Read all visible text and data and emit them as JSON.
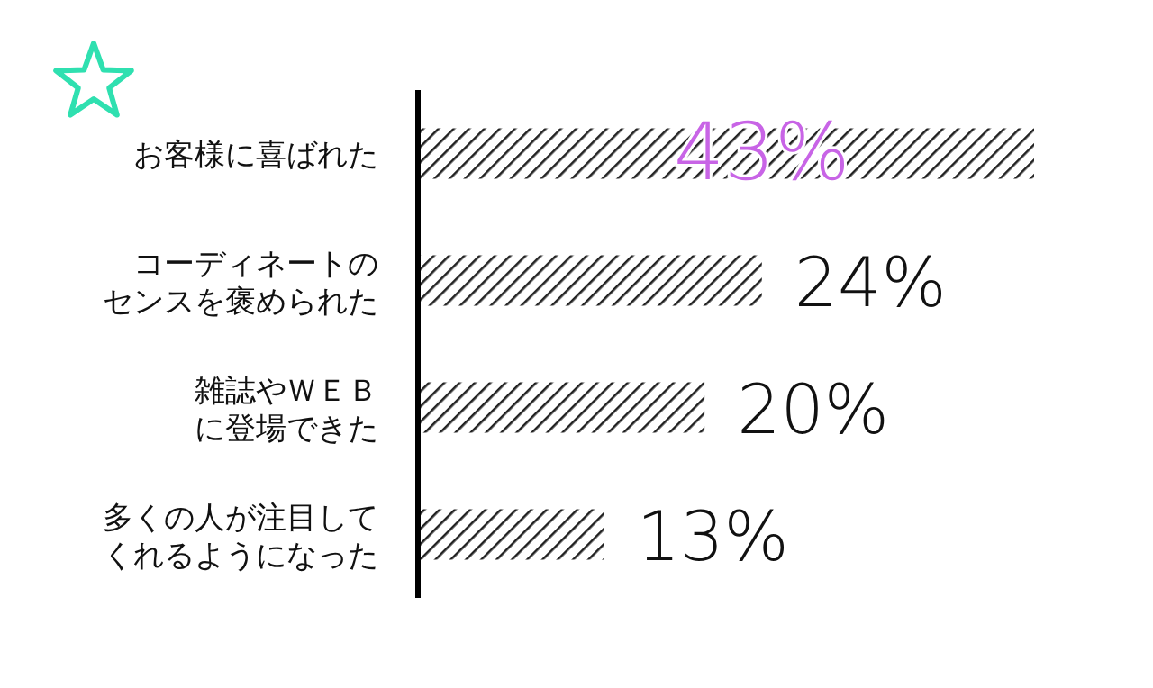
{
  "chart_data": {
    "type": "bar",
    "orientation": "horizontal",
    "categories": [
      "お客様に喜ばれた",
      "コーディネートのセンスを褒められた",
      "雑誌やＷＥＢに登場できた",
      "多くの人が注目してくれるようになった"
    ],
    "values": [
      43,
      24,
      20,
      13
    ],
    "color": "#222222",
    "value_labels": [
      "43%",
      "24%",
      "20%",
      "13%"
    ]
  }
}
